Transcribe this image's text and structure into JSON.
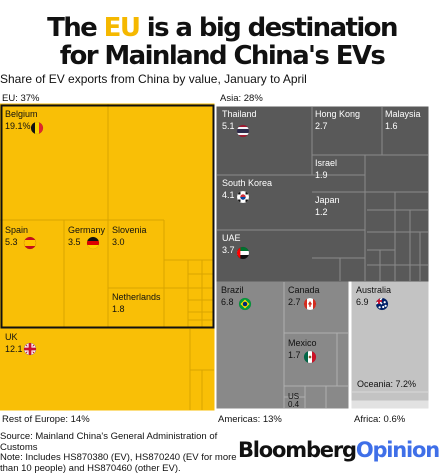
{
  "title": {
    "line1_pre": "The ",
    "line1_highlight": "EU",
    "line1_post": " is a big destination",
    "line2": "for Mainland China's EVs"
  },
  "subtitle": "Share of EV exports from China by value, January to April",
  "source": {
    "line1": "Source: Mainland China's General Administration of Customs",
    "line2": "Note: Includes HS870380 (EV), HS870240 (EV for more than 10 people) and HS870460 (other EV)."
  },
  "brand": {
    "part1": "Bloomberg",
    "part2": "Opinion"
  },
  "colors": {
    "eu": "#f9bf06",
    "asia": "#595959",
    "americas": "#898989",
    "oceania": "#c3c3c3",
    "africa": "#e2e2e2",
    "highlight": "#f5b800",
    "brand_accent": "#3f6fe8"
  },
  "chart_data": {
    "type": "treemap",
    "unit": "%",
    "groups": [
      {
        "name": "EU",
        "label": "EU: 37%",
        "value": 37,
        "items": [
          {
            "name": "Belgium",
            "value": 19.1,
            "label": "19.1%",
            "flag": "belgium-flag"
          },
          {
            "name": "Spain",
            "value": 5.3,
            "label": "5.3",
            "flag": "spain-flag"
          },
          {
            "name": "Germany",
            "value": 3.5,
            "label": "3.5",
            "flag": "germany-flag"
          },
          {
            "name": "Slovenia",
            "value": 3.0,
            "label": "3.0"
          },
          {
            "name": "Netherlands",
            "value": 1.8,
            "label": "1.8"
          }
        ]
      },
      {
        "name": "Rest of Europe",
        "label": "Rest of Europe: 14%",
        "value": 14,
        "items": [
          {
            "name": "UK",
            "value": 12.1,
            "label": "12.1",
            "flag": "uk-flag"
          }
        ]
      },
      {
        "name": "Asia",
        "label": "Asia: 28%",
        "value": 28,
        "items": [
          {
            "name": "Thailand",
            "value": 5.1,
            "label": "5.1",
            "flag": "thailand-flag"
          },
          {
            "name": "Hong Kong",
            "value": 2.7,
            "label": "2.7"
          },
          {
            "name": "Malaysia",
            "value": 1.6,
            "label": "1.6"
          },
          {
            "name": "South Korea",
            "value": 4.1,
            "label": "4.1",
            "flag": "south-korea-flag"
          },
          {
            "name": "Israel",
            "value": 1.9,
            "label": "1.9"
          },
          {
            "name": "Japan",
            "value": 1.2,
            "label": "1.2"
          },
          {
            "name": "UAE",
            "value": 3.7,
            "label": "3.7",
            "flag": "uae-flag"
          }
        ]
      },
      {
        "name": "Americas",
        "label": "Americas: 13%",
        "value": 13,
        "items": [
          {
            "name": "Brazil",
            "value": 6.8,
            "label": "6.8",
            "flag": "brazil-flag"
          },
          {
            "name": "Canada",
            "value": 2.7,
            "label": "2.7",
            "flag": "canada-flag"
          },
          {
            "name": "Mexico",
            "value": 1.7,
            "label": "1.7",
            "flag": "mexico-flag"
          },
          {
            "name": "US",
            "value": 0.4,
            "label": "0.4"
          }
        ]
      },
      {
        "name": "Oceania",
        "label": "Oceania: 7.2%",
        "value": 7.2,
        "items": [
          {
            "name": "Australia",
            "value": 6.9,
            "label": "6.9",
            "flag": "australia-flag"
          }
        ]
      },
      {
        "name": "Africa",
        "label": "Africa: 0.6%",
        "value": 0.6,
        "items": []
      }
    ]
  }
}
